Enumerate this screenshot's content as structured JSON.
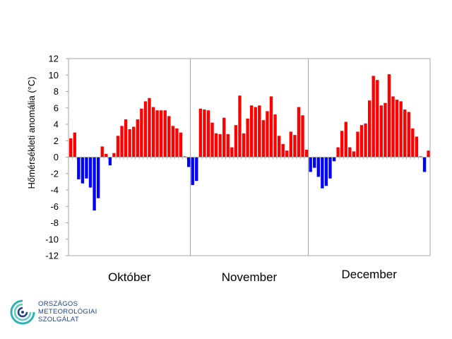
{
  "chart_data": {
    "type": "bar",
    "title": "",
    "ylabel": "Hőmérsékleti anomália (°C)",
    "xlabel": "",
    "ylim": [
      -12,
      12
    ],
    "yticks": [
      -12,
      -10,
      -8,
      -6,
      -4,
      -2,
      0,
      2,
      4,
      6,
      8,
      10,
      12
    ],
    "months": [
      {
        "label": "Október",
        "days": 31
      },
      {
        "label": "November",
        "days": 30
      },
      {
        "label": "December",
        "days": 31
      }
    ],
    "positive_color": "#ff0000",
    "negative_color": "#0000ff",
    "values": [
      2.3,
      3.0,
      -2.7,
      -3.2,
      -2.6,
      -3.7,
      -6.5,
      -5.0,
      1.3,
      0.4,
      -1.0,
      0.5,
      2.6,
      3.8,
      4.6,
      3.4,
      3.7,
      4.6,
      5.9,
      6.8,
      7.2,
      6.1,
      5.7,
      5.7,
      5.7,
      5.0,
      3.8,
      3.5,
      3.0,
      0.1,
      -1.2,
      -3.4,
      -2.9,
      5.9,
      5.8,
      5.7,
      4.2,
      2.9,
      2.8,
      4.8,
      2.8,
      1.2,
      3.9,
      7.5,
      2.9,
      4.7,
      6.3,
      6.1,
      6.3,
      4.5,
      5.6,
      7.4,
      5.2,
      2.6,
      1.6,
      0.8,
      3.1,
      2.7,
      6.1,
      5.1,
      0.9,
      -1.8,
      -1.3,
      -2.4,
      -3.8,
      -3.5,
      -2.6,
      -0.5,
      1.2,
      3.2,
      4.3,
      1.2,
      0.7,
      3.1,
      3.9,
      4.1,
      6.9,
      9.9,
      9.4,
      6.3,
      6.6,
      10.1,
      7.4,
      7.0,
      6.8,
      5.8,
      5.5,
      3.5,
      2.5,
      0.1,
      -1.8,
      0.8
    ]
  },
  "logo": {
    "line1": "ORSZÁGOS",
    "line2": "METEOROLÓGIAI",
    "line3": "SZOLGÁLAT",
    "color": "#1f3f8f",
    "accent": "#2fb3b5"
  }
}
